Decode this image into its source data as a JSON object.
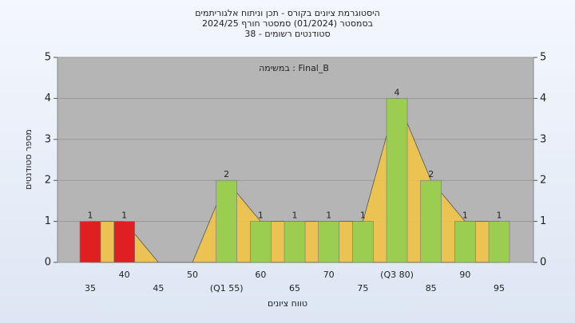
{
  "chart_data": {
    "type": "bar",
    "title": [
      "היסטוגרמת ציונים בקורס - תכן וניתוח אלגוריתמים",
      "בסמסטר  (01/2024)  סמסטר חורף 2024/25",
      "סטודנטים רשומים - 38"
    ],
    "annotation": "במשימה : Final_B",
    "y_label": "מספר סטודנטים",
    "x_label": "טווח ציונים",
    "categories": [
      "35",
      "40",
      "45",
      "50",
      "(Q1 55)",
      "60",
      "65",
      "70",
      "75",
      "(Q3 80)",
      "85",
      "90",
      "95"
    ],
    "values": [
      1,
      1,
      0,
      0,
      2,
      1,
      1,
      1,
      1,
      4,
      2,
      1,
      1
    ],
    "colors": [
      "#e02020",
      "#e02020",
      "#9acd50",
      "#9acd50",
      "#9acd50",
      "#9acd50",
      "#9acd50",
      "#9acd50",
      "#9acd50",
      "#9acd50",
      "#9acd50",
      "#9acd50",
      "#9acd50"
    ],
    "area_color": "#f5c542",
    "ylim": [
      0,
      5
    ],
    "yticks": [
      0,
      1,
      2,
      3,
      4,
      5
    ],
    "grid": true
  }
}
